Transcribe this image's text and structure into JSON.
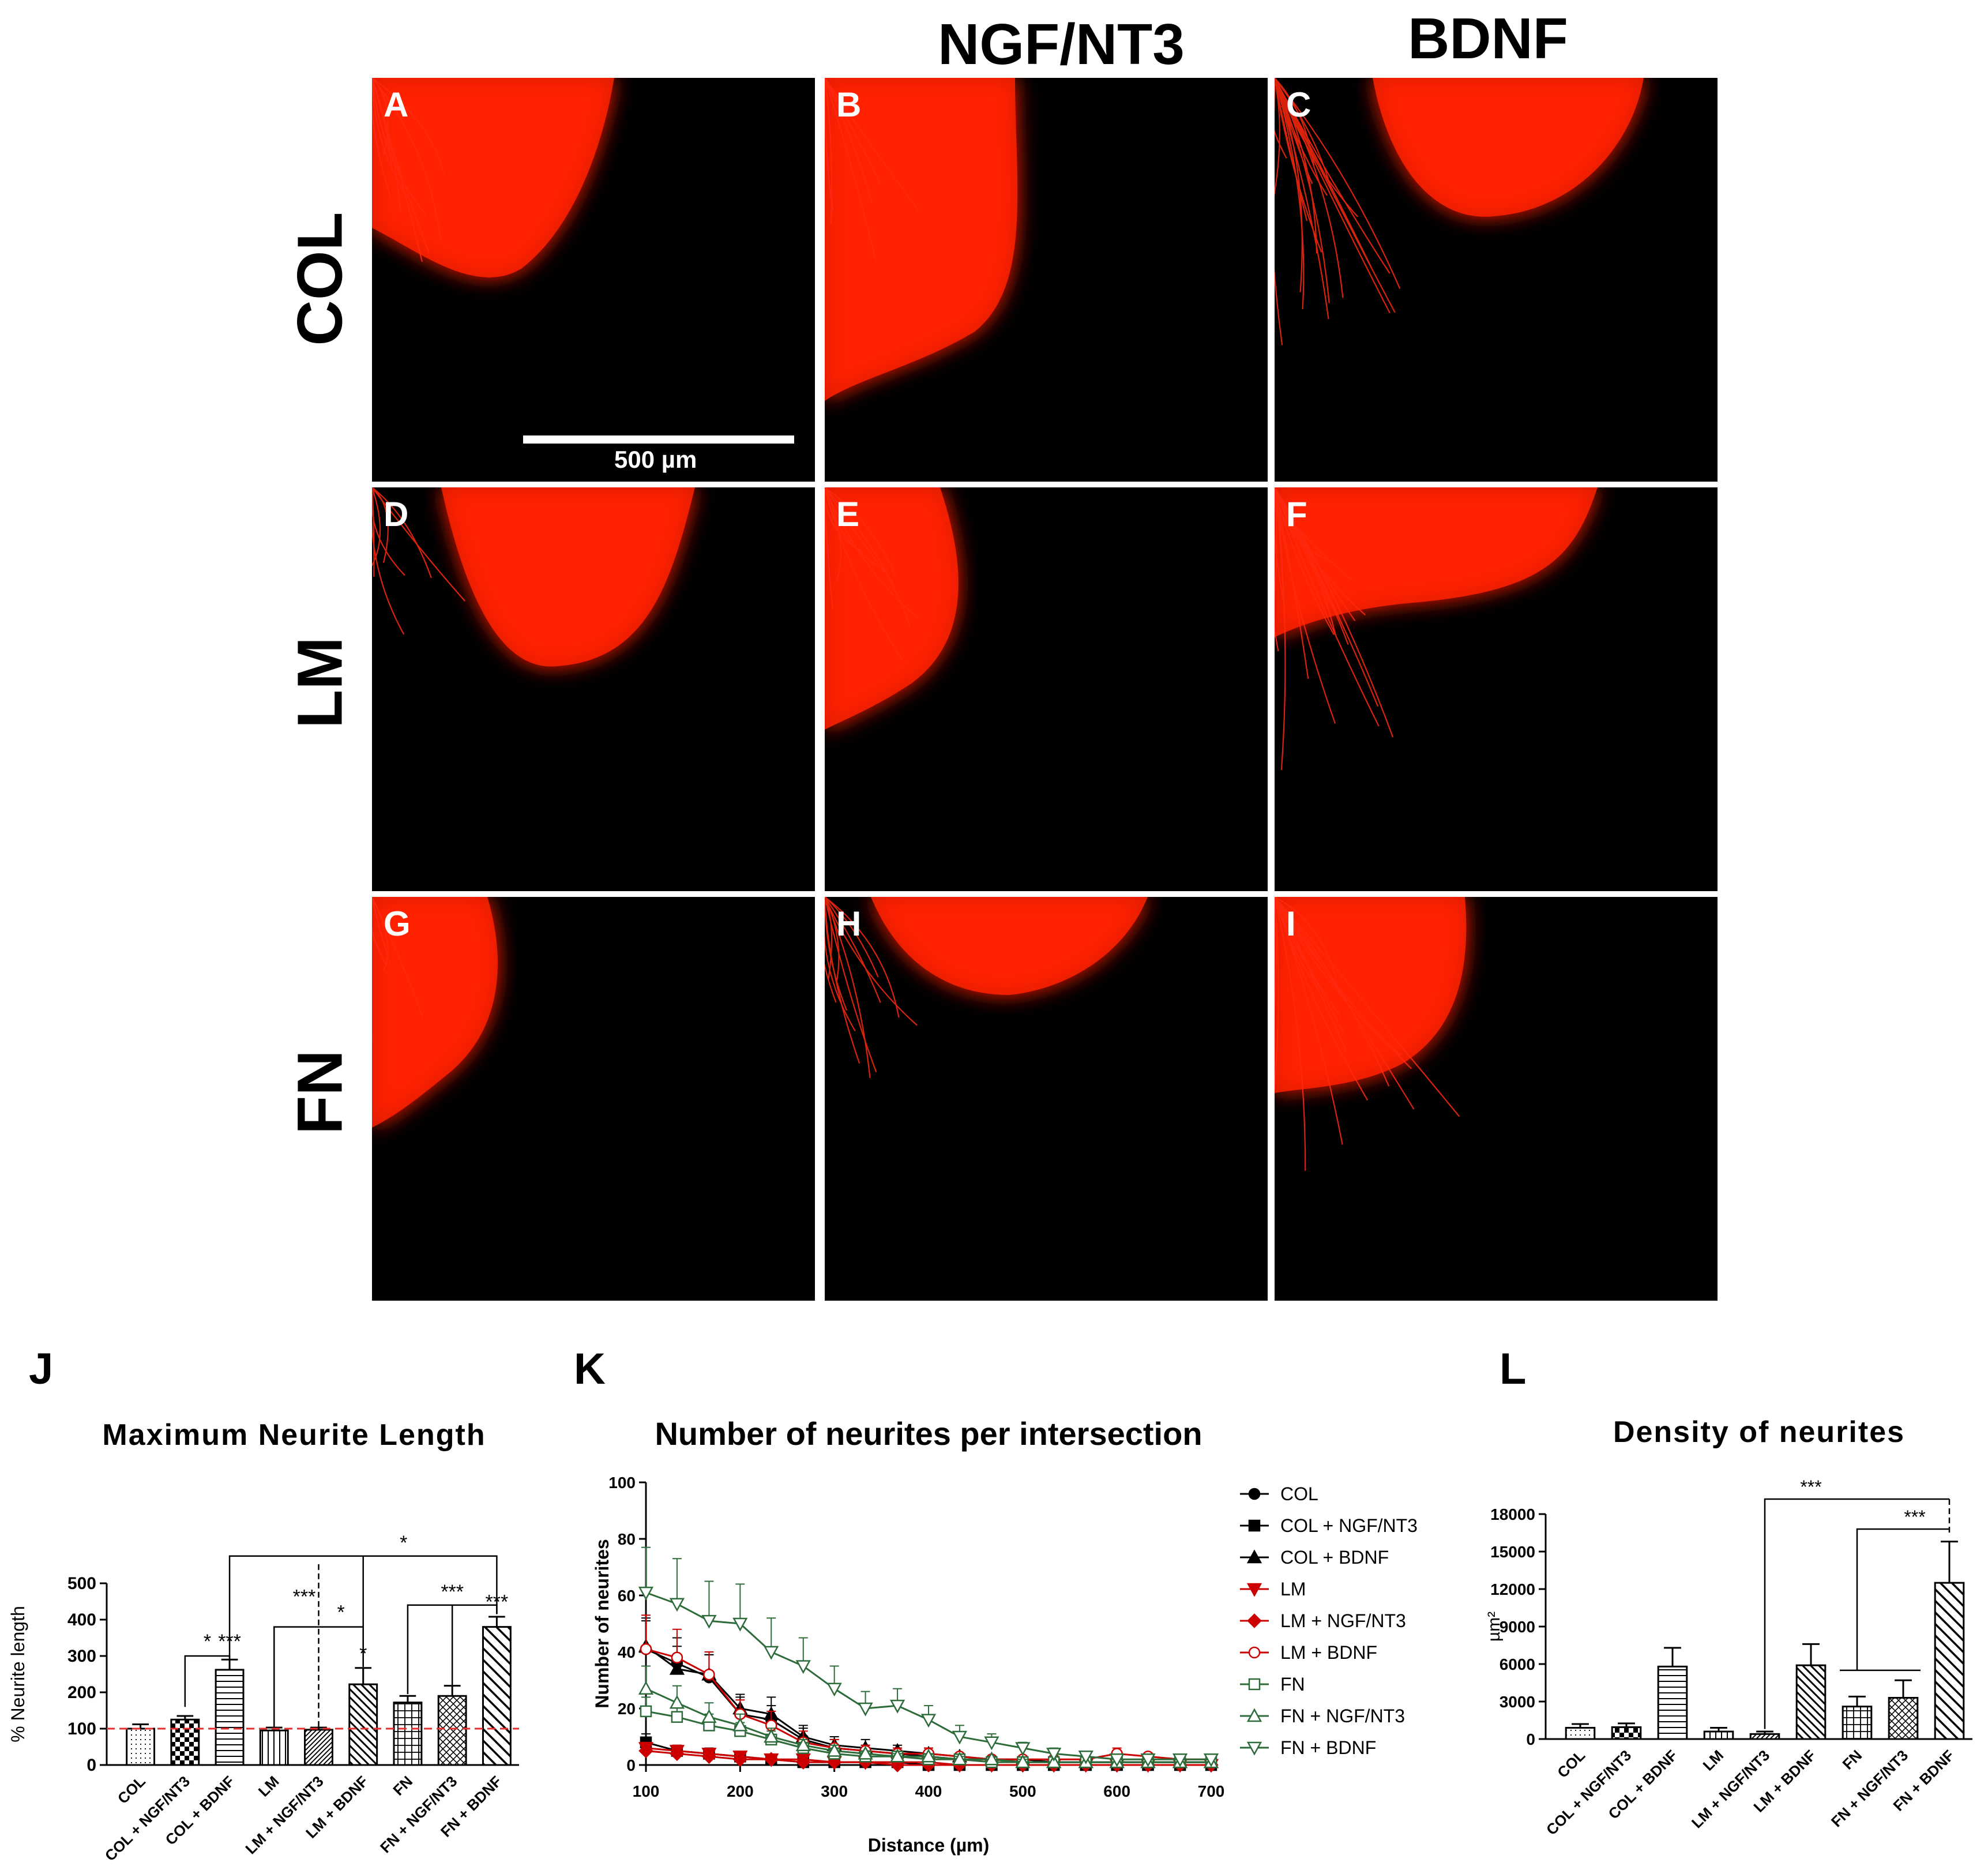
{
  "figure": {
    "column_headers": [
      "NGF/NT3",
      "BDNF"
    ],
    "row_headers": [
      "COL",
      "LM",
      "FN"
    ],
    "panel_labels": [
      "A",
      "B",
      "C",
      "D",
      "E",
      "F",
      "G",
      "H",
      "I"
    ],
    "scale_bar_label": "500 µm",
    "panel_letters": {
      "j": "J",
      "k": "K",
      "l": "L"
    }
  },
  "chart_data": [
    {
      "type": "bar",
      "title": "Maximum Neurite  Length",
      "ylabel": "% Neurite length",
      "categories": [
        "COL",
        "COL + NGF/NT3",
        "COL + BDNF",
        "LM",
        "LM + NGF/NT3",
        "LM + BDNF",
        "FN",
        "FN + NGF/NT3",
        "FN + BDNF"
      ],
      "values": [
        100,
        125,
        262,
        95,
        97,
        222,
        172,
        190,
        380
      ],
      "errors": [
        12,
        10,
        28,
        8,
        6,
        45,
        18,
        28,
        28
      ],
      "ylim": [
        0,
        500
      ],
      "yticks": [
        0,
        100,
        200,
        300,
        400,
        500
      ],
      "reference_line": 100,
      "significance": [
        "*",
        "***",
        "*",
        "***",
        "*",
        "*",
        "***",
        "***"
      ]
    },
    {
      "type": "line",
      "title": "Number of neurites per intersection",
      "xlabel": "Distance (µm)",
      "ylabel": "Number of neurites",
      "xlim": [
        100,
        700
      ],
      "ylim": [
        0,
        100
      ],
      "xticks": [
        100,
        200,
        300,
        400,
        500,
        600,
        700
      ],
      "yticks": [
        0,
        20,
        40,
        60,
        80,
        100
      ],
      "x": [
        100,
        133,
        167,
        200,
        233,
        267,
        300,
        333,
        367,
        400,
        433,
        467,
        500,
        533,
        567,
        600,
        633,
        667,
        700
      ],
      "series": [
        {
          "name": "COL",
          "color": "#000000",
          "marker": "circle-filled",
          "values": [
            41,
            36,
            31,
            18,
            16,
            9,
            6,
            5,
            4,
            3,
            2,
            2,
            1,
            1,
            1,
            1,
            1,
            1,
            1
          ],
          "errors": [
            10,
            9,
            8,
            6,
            5,
            4,
            3,
            2,
            2,
            2,
            1,
            1,
            1,
            1,
            1,
            1,
            1,
            1,
            1
          ]
        },
        {
          "name": "COL + NGF/NT3",
          "color": "#000000",
          "marker": "square-filled",
          "values": [
            8,
            5,
            4,
            3,
            2,
            1,
            1,
            1,
            1,
            0,
            0,
            0,
            0,
            0,
            0,
            0,
            0,
            0,
            0
          ],
          "errors": [
            3,
            2,
            2,
            1,
            1,
            1,
            1,
            1,
            1,
            0,
            0,
            0,
            0,
            0,
            0,
            0,
            0,
            0,
            0
          ]
        },
        {
          "name": "COL + BDNF",
          "color": "#000000",
          "marker": "triangle-up-filled",
          "values": [
            42,
            34,
            32,
            20,
            18,
            10,
            7,
            6,
            5,
            4,
            3,
            2,
            2,
            1,
            1,
            1,
            1,
            1,
            1
          ],
          "errors": [
            10,
            8,
            7,
            5,
            6,
            4,
            3,
            3,
            2,
            2,
            1,
            1,
            1,
            1,
            1,
            1,
            1,
            1,
            1
          ]
        },
        {
          "name": "LM",
          "color": "#cc0000",
          "marker": "triangle-down-filled",
          "values": [
            6,
            5,
            4,
            3,
            2,
            2,
            1,
            1,
            1,
            1,
            0,
            0,
            0,
            0,
            0,
            0,
            0,
            0,
            0
          ],
          "errors": [
            2,
            2,
            1,
            1,
            1,
            1,
            1,
            1,
            0,
            0,
            0,
            0,
            0,
            0,
            0,
            0,
            0,
            0,
            0
          ]
        },
        {
          "name": "LM + NGF/NT3",
          "color": "#cc0000",
          "marker": "diamond-filled",
          "values": [
            5,
            4,
            3,
            2,
            2,
            1,
            1,
            1,
            0,
            0,
            0,
            0,
            0,
            0,
            0,
            0,
            0,
            0,
            0
          ],
          "errors": [
            2,
            1,
            1,
            1,
            1,
            0,
            0,
            0,
            0,
            0,
            0,
            0,
            0,
            0,
            0,
            0,
            0,
            0,
            0
          ]
        },
        {
          "name": "LM + BDNF",
          "color": "#cc0000",
          "marker": "circle-open",
          "values": [
            41,
            38,
            32,
            18,
            14,
            8,
            6,
            5,
            4,
            4,
            3,
            2,
            2,
            2,
            2,
            4,
            3,
            2,
            2
          ],
          "errors": [
            12,
            10,
            8,
            5,
            5,
            4,
            3,
            2,
            2,
            2,
            1,
            1,
            1,
            1,
            1,
            2,
            1,
            1,
            1
          ]
        },
        {
          "name": "FN",
          "color": "#2e6b3a",
          "marker": "square-open",
          "values": [
            19,
            17,
            14,
            12,
            9,
            6,
            4,
            3,
            3,
            2,
            2,
            1,
            1,
            1,
            1,
            1,
            1,
            1,
            1
          ],
          "errors": [
            5,
            4,
            4,
            3,
            3,
            2,
            2,
            1,
            1,
            1,
            1,
            1,
            0,
            0,
            0,
            0,
            0,
            0,
            0
          ]
        },
        {
          "name": "FN + NGF/NT3",
          "color": "#2e6b3a",
          "marker": "triangle-up-open",
          "values": [
            27,
            22,
            17,
            14,
            10,
            7,
            5,
            4,
            3,
            3,
            2,
            2,
            1,
            1,
            1,
            1,
            1,
            1,
            1
          ],
          "errors": [
            8,
            6,
            5,
            4,
            3,
            2,
            2,
            1,
            1,
            1,
            1,
            1,
            1,
            0,
            0,
            0,
            0,
            0,
            0
          ]
        },
        {
          "name": "FN + BDNF",
          "color": "#2e6b3a",
          "marker": "triangle-down-open",
          "values": [
            61,
            57,
            51,
            50,
            40,
            35,
            27,
            20,
            21,
            16,
            10,
            8,
            6,
            4,
            3,
            2,
            2,
            2,
            2
          ],
          "errors": [
            16,
            16,
            14,
            14,
            12,
            10,
            8,
            6,
            6,
            5,
            4,
            3,
            2,
            2,
            1,
            1,
            1,
            1,
            1
          ]
        }
      ]
    },
    {
      "type": "bar",
      "title": "Density of neurites",
      "ylabel": "µm²",
      "categories": [
        "COL",
        "COL + NGF/NT3",
        "COL + BDNF",
        "LM",
        "LM + NGF/NT3",
        "LM + BDNF",
        "FN",
        "FN + NGF/NT3",
        "FN + BDNF"
      ],
      "values": [
        900,
        950,
        5800,
        600,
        400,
        5900,
        2600,
        3300,
        12500
      ],
      "errors": [
        300,
        300,
        1500,
        300,
        200,
        1700,
        800,
        1400,
        3300
      ],
      "ylim": [
        0,
        18000
      ],
      "yticks": [
        0,
        3000,
        6000,
        9000,
        12000,
        15000,
        18000
      ],
      "significance": [
        "***",
        "***"
      ]
    }
  ]
}
